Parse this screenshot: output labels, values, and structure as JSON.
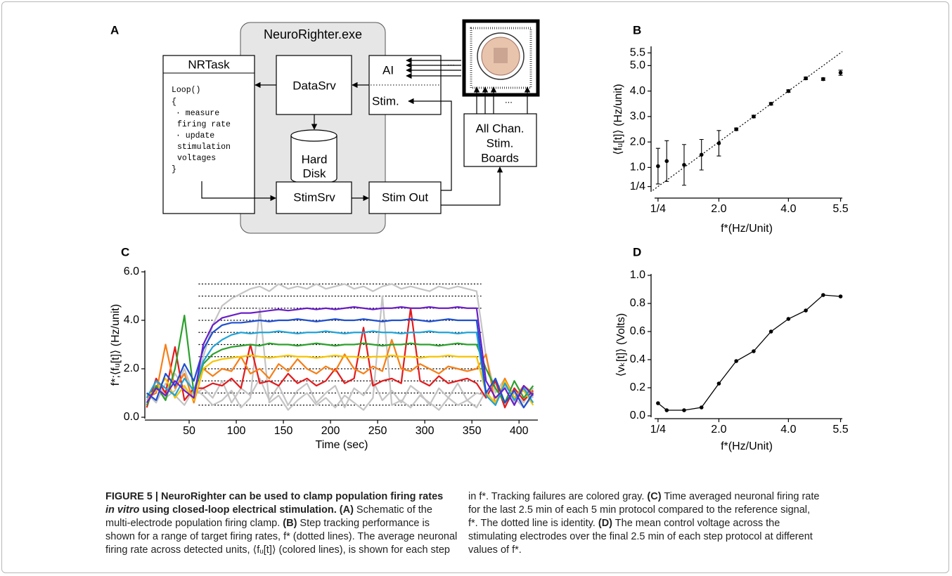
{
  "diagram": {
    "panel": "A",
    "app": "NeuroRighter.exe",
    "task": {
      "title": "NRTask",
      "code": [
        "Loop()",
        "{",
        "· measure",
        "firing rate",
        "· update",
        "stimulation",
        "voltages",
        "}"
      ]
    },
    "data_server": "DataSrv",
    "disk": [
      "Hard",
      "Disk"
    ],
    "io": {
      "input": "AI",
      "input_more": "...",
      "output": "Stim."
    },
    "stim_server": "StimSrv",
    "stim_out": "Stim Out",
    "boards": [
      "All Chan.",
      "Stim.",
      "Boards"
    ],
    "boards_more": "..."
  },
  "chart_data": [
    {
      "type": "scatter",
      "panel": "B",
      "x_label": "f*(Hz/Unit)",
      "y_label": "⟨fᵤ[t]⟩ (Hz/unit)",
      "x": [
        0.25,
        0.5,
        1.0,
        1.5,
        2.0,
        2.5,
        3.0,
        3.5,
        4.0,
        4.5,
        5.0,
        5.5
      ],
      "values": [
        1.05,
        1.25,
        1.1,
        1.5,
        1.95,
        2.5,
        3.0,
        3.5,
        4.0,
        4.5,
        4.47,
        4.72
      ],
      "errors": [
        0.7,
        0.8,
        0.8,
        0.6,
        0.5,
        0.05,
        0.05,
        0.05,
        0.05,
        0.05,
        0.05,
        0.1
      ],
      "color": "#000000",
      "identity_line": true,
      "xlim": [
        0.05,
        5.55
      ],
      "ylim": [
        0.1,
        5.7
      ],
      "xticks": [
        {
          "value": 0.25,
          "label": "1/4"
        },
        {
          "value": 2,
          "label": "2.0"
        },
        {
          "value": 4,
          "label": "4.0"
        },
        5.5
      ],
      "yticks": [
        {
          "value": 0.25,
          "label": "1/4"
        },
        {
          "value": 1,
          "label": "1.0"
        },
        {
          "value": 2,
          "label": "2.0"
        },
        {
          "value": 3,
          "label": "3.0"
        },
        {
          "value": 4,
          "label": "4.0"
        },
        {
          "value": 5,
          "label": "5.0"
        },
        5.5
      ]
    },
    {
      "type": "line",
      "panel": "C",
      "x_label": "Time (sec)",
      "y_label": "f*;⟨fᵤ[t]⟩ (Hz/unit)",
      "x": [
        5,
        15,
        25,
        35,
        45,
        55,
        65,
        75,
        85,
        95,
        105,
        115,
        125,
        135,
        145,
        155,
        165,
        175,
        185,
        195,
        205,
        215,
        225,
        235,
        245,
        255,
        265,
        275,
        285,
        295,
        305,
        315,
        325,
        335,
        345,
        355,
        365,
        375,
        385,
        395,
        405,
        415
      ],
      "reference_levels": [
        0.5,
        1.0,
        1.5,
        2.0,
        2.5,
        3.0,
        3.5,
        4.0,
        4.5,
        5.0,
        5.5
      ],
      "reference_span": [
        60,
        360
      ],
      "series": [
        {
          "color": "#c4c4c4",
          "values": [
            0.7,
            1.3,
            1.0,
            1.8,
            1.2,
            0.9,
            2.5,
            3.8,
            4.6,
            4.9,
            5.1,
            5.3,
            5.4,
            5.2,
            5.5,
            5.3,
            5.4,
            5.3,
            5.5,
            5.3,
            5.4,
            5.5,
            5.3,
            5.4,
            5.2,
            5.4,
            5.5,
            5.3,
            5.4,
            5.3,
            5.2,
            5.4,
            5.3,
            5.4,
            5.3,
            5.2,
            2.5,
            1.0,
            1.6,
            0.6,
            1.2,
            0.8
          ]
        },
        {
          "color": "#c4c4c4",
          "values": [
            0.5,
            1.5,
            0.8,
            1.1,
            2.0,
            0.9,
            1.2,
            0.8,
            1.5,
            0.6,
            1.2,
            0.9,
            1.6,
            0.7,
            1.3,
            0.5,
            1.1,
            1.4,
            0.6,
            1.0,
            1.3,
            0.4,
            1.2,
            0.9,
            1.5,
            0.7,
            1.1,
            0.6,
            1.3,
            1.0,
            0.5,
            1.2,
            0.8,
            1.4,
            0.7,
            1.0,
            0.9,
            1.4,
            0.5,
            1.0,
            0.6,
            1.2
          ]
        },
        {
          "color": "#c4c4c4",
          "values": [
            1.0,
            0.6,
            1.4,
            0.9,
            0.5,
            1.2,
            0.9,
            0.5,
            0.7,
            1.1,
            0.4,
            0.8,
            4.5,
            0.6,
            0.9,
            0.3,
            0.7,
            1.0,
            0.5,
            0.8,
            0.4,
            0.9,
            0.6,
            0.3,
            0.8,
            5.0,
            0.5,
            0.7,
            0.4,
            0.9,
            0.6,
            0.3,
            0.8,
            0.5,
            0.7,
            0.4,
            1.1,
            0.5,
            1.3,
            0.8,
            0.4,
            0.9
          ]
        },
        {
          "color": "#e31a1c",
          "values": [
            0.4,
            1.6,
            1.0,
            2.9,
            0.7,
            1.2,
            1.2,
            1.4,
            1.3,
            1.6,
            1.2,
            3.0,
            1.4,
            1.5,
            1.3,
            1.8,
            1.4,
            1.6,
            1.3,
            1.5,
            2.0,
            1.4,
            1.6,
            3.7,
            1.3,
            1.5,
            1.6,
            1.4,
            4.5,
            1.5,
            1.3,
            1.7,
            1.4,
            1.5,
            1.6,
            1.4,
            0.8,
            1.5,
            0.4,
            1.2,
            0.7,
            1.1
          ]
        },
        {
          "color": "#f57f17",
          "values": [
            0.8,
            1.0,
            3.0,
            1.2,
            1.8,
            0.6,
            2.0,
            1.7,
            2.0,
            1.9,
            2.5,
            1.8,
            2.0,
            1.6,
            2.2,
            1.9,
            2.4,
            2.0,
            1.8,
            2.1,
            1.9,
            2.6,
            2.0,
            1.8,
            2.1,
            1.9,
            3.2,
            2.0,
            1.9,
            2.2,
            2.0,
            1.8,
            2.1,
            2.0,
            1.9,
            2.0,
            2.6,
            0.5,
            1.6,
            0.8,
            1.3,
            1.0
          ]
        },
        {
          "color": "#f5c400",
          "values": [
            0.9,
            1.1,
            1.6,
            0.8,
            1.3,
            0.7,
            2.0,
            2.3,
            2.4,
            2.45,
            2.5,
            2.55,
            2.5,
            2.45,
            2.5,
            2.55,
            2.5,
            2.5,
            2.45,
            2.5,
            2.55,
            2.5,
            2.5,
            2.45,
            2.5,
            2.5,
            2.55,
            2.5,
            2.5,
            2.45,
            2.5,
            2.5,
            2.55,
            2.5,
            2.5,
            2.5,
            1.0,
            0.6,
            1.5,
            0.8,
            1.1,
            0.5
          ]
        },
        {
          "color": "#2ca02c",
          "values": [
            0.5,
            1.3,
            0.7,
            2.0,
            4.2,
            1.0,
            2.2,
            2.6,
            2.8,
            2.9,
            2.95,
            3.0,
            2.95,
            3.05,
            3.0,
            3.0,
            2.95,
            3.0,
            3.05,
            3.0,
            2.95,
            3.0,
            3.0,
            3.05,
            3.0,
            2.95,
            3.0,
            3.0,
            3.05,
            3.0,
            3.0,
            2.95,
            3.0,
            3.05,
            3.0,
            3.0,
            2.0,
            1.2,
            0.6,
            1.5,
            0.8,
            1.3
          ]
        },
        {
          "color": "#1fa3d9",
          "values": [
            0.8,
            1.5,
            1.2,
            0.9,
            1.6,
            1.1,
            2.3,
            2.9,
            3.2,
            3.4,
            3.5,
            3.45,
            3.5,
            3.5,
            3.55,
            3.5,
            3.45,
            3.5,
            3.5,
            3.55,
            3.5,
            3.45,
            3.5,
            3.5,
            3.55,
            3.5,
            3.5,
            3.45,
            3.5,
            3.5,
            3.55,
            3.5,
            3.5,
            3.45,
            3.5,
            3.5,
            0.9,
            0.5,
            1.4,
            0.7,
            1.2,
            0.6
          ]
        },
        {
          "color": "#1f4fd0",
          "values": [
            1.0,
            0.7,
            1.8,
            1.3,
            2.2,
            1.5,
            2.8,
            3.5,
            3.8,
            3.9,
            3.9,
            3.95,
            4.0,
            3.95,
            4.0,
            4.0,
            4.05,
            4.0,
            3.95,
            4.0,
            4.05,
            4.0,
            4.0,
            4.05,
            4.0,
            3.95,
            4.0,
            4.0,
            4.05,
            4.0,
            3.95,
            4.0,
            4.05,
            4.0,
            4.0,
            4.0,
            1.0,
            1.6,
            0.6,
            1.1,
            0.4,
            1.0
          ]
        },
        {
          "color": "#6a1fc8",
          "values": [
            0.6,
            1.2,
            0.9,
            1.5,
            1.1,
            0.8,
            3.0,
            3.8,
            4.1,
            4.2,
            4.3,
            4.3,
            4.35,
            4.4,
            4.45,
            4.4,
            4.45,
            4.5,
            4.45,
            4.5,
            4.45,
            4.5,
            4.55,
            4.5,
            4.45,
            4.5,
            4.5,
            4.55,
            4.5,
            4.5,
            4.55,
            4.5,
            4.5,
            4.55,
            4.5,
            4.5,
            1.5,
            0.8,
            1.2,
            0.5,
            1.3,
            0.9
          ]
        }
      ],
      "xlim": [
        3,
        420
      ],
      "ylim": [
        0,
        6
      ],
      "xticks": [
        50,
        100,
        150,
        200,
        250,
        300,
        350,
        400
      ],
      "yticks": [
        {
          "value": 0,
          "label": "0.0"
        },
        {
          "value": 2,
          "label": "2.0"
        },
        {
          "value": 4,
          "label": "4.0"
        },
        {
          "value": 6,
          "label": "6.0"
        }
      ]
    },
    {
      "type": "line",
      "panel": "D",
      "x_label": "f*(Hz/Unit)",
      "y_label": "⟨vₖ[t]⟩ (Volts)",
      "x": [
        0.25,
        0.5,
        1.0,
        1.5,
        2.0,
        2.5,
        3.0,
        3.5,
        4.0,
        4.5,
        5.0,
        5.5
      ],
      "values": [
        0.09,
        0.04,
        0.04,
        0.06,
        0.23,
        0.39,
        0.46,
        0.6,
        0.69,
        0.75,
        0.86,
        0.85
      ],
      "color": "#000000",
      "markers": true,
      "xlim": [
        0.05,
        5.55
      ],
      "ylim": [
        0,
        1
      ],
      "xticks": [
        {
          "value": 0.25,
          "label": "1/4"
        },
        {
          "value": 2,
          "label": "2.0"
        },
        {
          "value": 4,
          "label": "4.0"
        },
        5.5
      ],
      "yticks": [
        {
          "value": 0,
          "label": "0.0"
        },
        0.2,
        0.4,
        0.6,
        0.8,
        {
          "value": 1,
          "label": "1.0"
        }
      ]
    }
  ],
  "caption": {
    "column_1": [
      [
        "FIGURE 5 | NeuroRighter can be used to clamp population firing rates"
      ],
      [
        "in vitro",
        " using closed-loop electrical stimulation.",
        " (A)",
        " Schematic of the"
      ],
      [
        "multi-electrode population firing clamp. ",
        "(B)",
        " Step tracking performance is"
      ],
      [
        "shown for a range of target firing rates, f* (dotted lines). The average neuronal"
      ],
      [
        "firing rate across detected units, ⟨fᵤ[t]⟩ (colored lines), is shown for each step"
      ]
    ],
    "column_2": [
      [
        "in f*. Tracking failures are colored gray. ",
        "(C)",
        " Time averaged neuronal firing rate"
      ],
      [
        "for the last 2.5 min of each 5 min protocol compared to the reference signal,"
      ],
      [
        "f*. The dotted line is identity. ",
        "(D)",
        " The mean control voltage across the"
      ],
      [
        "stimulating electrodes over the final 2.5 min of each step protocol at different"
      ],
      [
        "values of f*."
      ]
    ]
  }
}
